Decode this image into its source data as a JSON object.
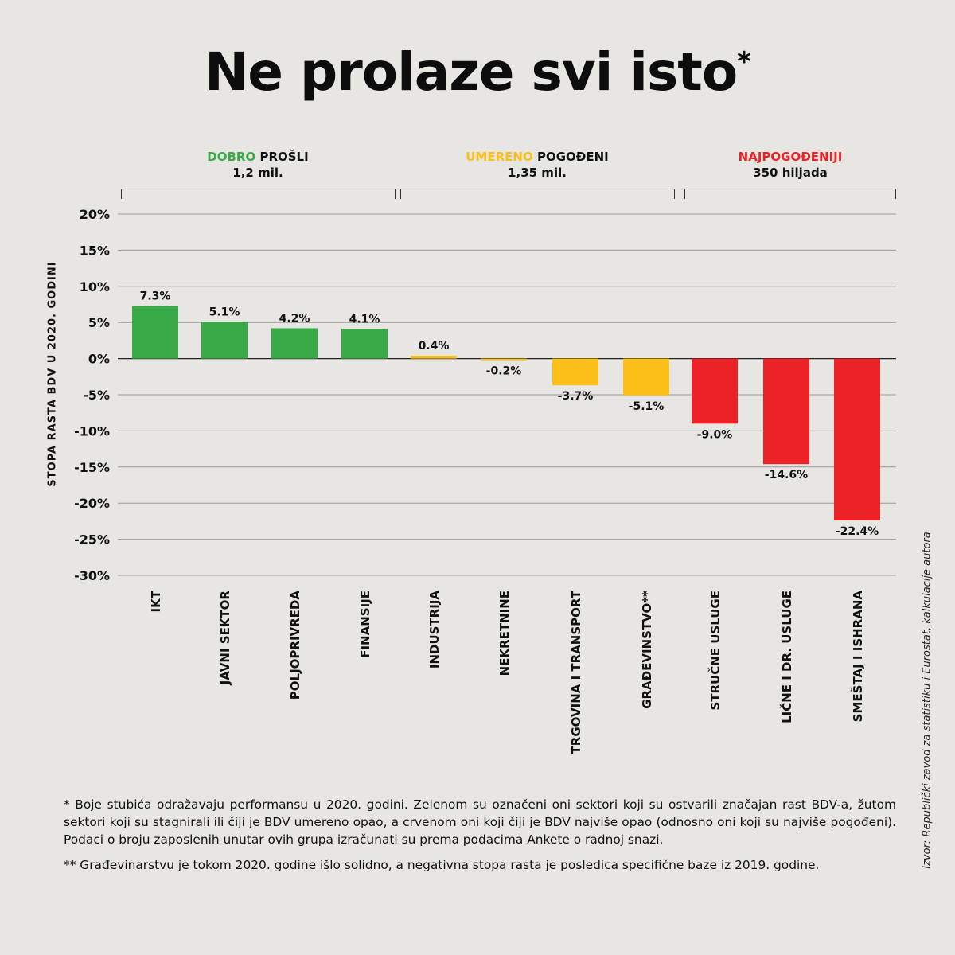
{
  "title": "Ne prolaze svi isto",
  "title_mark": "*",
  "groups": [
    {
      "word1": "DOBRO",
      "word2": "PROŠLI",
      "count": "1,2 mil.",
      "color": "#3aaa48"
    },
    {
      "word1": "UMERENO",
      "word2": "POGOĐENI",
      "count": "1,35 mil.",
      "color": "#fbbf17"
    },
    {
      "word1": "NAJPOGOĐENIJI",
      "word2": "",
      "count": "350 hiljada",
      "color": "#ec2227"
    }
  ],
  "colors": {
    "green": "#3aaa48",
    "yellow": "#fbbf17",
    "red": "#ec2227"
  },
  "chart_data": {
    "type": "bar",
    "ylabel": "STOPA RASTA BDV U 2020. GODINI",
    "ylim": [
      -30,
      20
    ],
    "yticks": [
      "20%",
      "15%",
      "10%",
      "5%",
      "0%",
      "-5%",
      "-10%",
      "-15%",
      "-20%",
      "-25%",
      "-30%"
    ],
    "grid": true,
    "categories": [
      "IKT",
      "JAVNI SEKTOR",
      "POLJOPRIVREDA",
      "FINANSIJE",
      "INDUSTRIJA",
      "NEKRETNINE",
      "TRGOVINA I TRANSPORT",
      "GRAĐEVINSTVO**",
      "STRUČNE USLUGE",
      "LIČNE I DR. USLUGE",
      "SMEŠTAJ I ISHRANA"
    ],
    "values": [
      7.3,
      5.1,
      4.2,
      4.1,
      0.4,
      -0.2,
      -3.7,
      -5.1,
      -9.0,
      -14.6,
      -22.4
    ],
    "value_labels": [
      "7.3%",
      "5.1%",
      "4.2%",
      "4.1%",
      "0.4%",
      "-0.2%",
      "-3.7%",
      "-5.1%",
      "-9.0%",
      "-14.6%",
      "-22.4%"
    ],
    "bar_groups": [
      "green",
      "green",
      "green",
      "green",
      "yellow",
      "yellow",
      "yellow",
      "yellow",
      "red",
      "red",
      "red"
    ]
  },
  "footnotes": [
    "* Boje stubića odražavaju performansu u 2020. godini. Zelenom su označeni oni sektori koji su ostvarili značajan rast BDV-a, žutom sektori koji su stagnirali ili čiji je BDV umereno opao, a crvenom oni koji čiji je BDV najviše opao (odnosno oni koji su najviše pogođeni). Podaci o broju zaposlenih unutar ovih grupa izračunati su prema podacima Ankete o radnoj snazi.",
    "** Građevinarstvu je tokom 2020. godine išlo solidno, a negativna stopa rasta je posledica specifične baze iz 2019. godine."
  ],
  "source": "Izvor: Republički zavod za statistiku i Eurostat, kalkulacije autora"
}
